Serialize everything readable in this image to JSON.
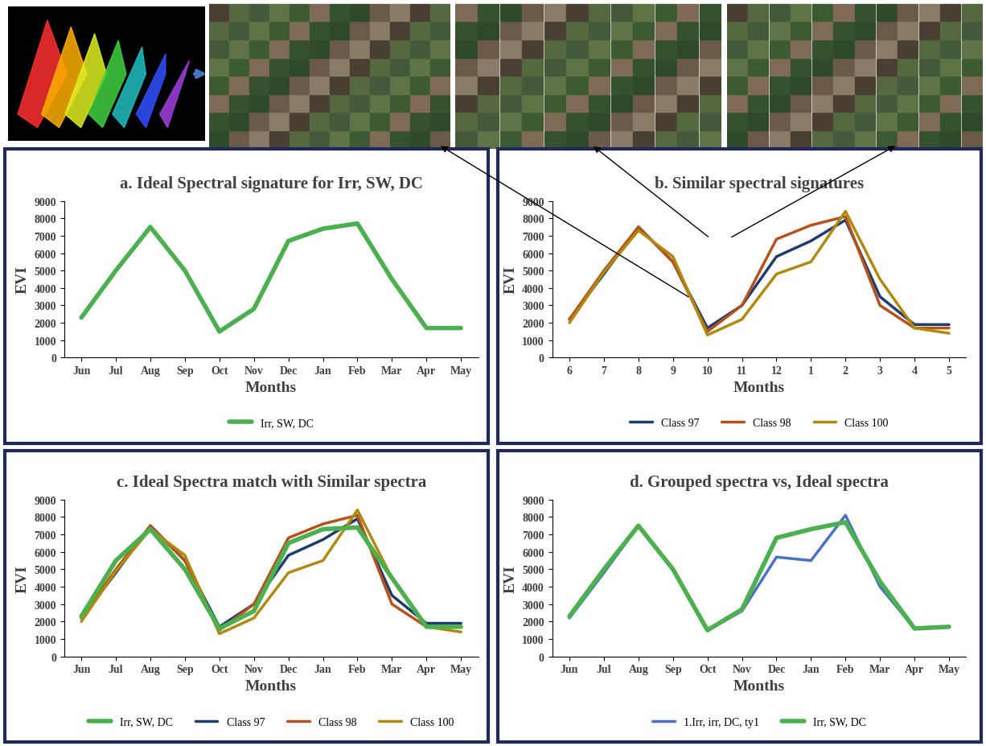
{
  "chart_data": [
    {
      "type": "line",
      "title": "a. Ideal Spectral signature for Irr, SW, DC",
      "x_label": "Months",
      "y_label": "EVI",
      "categories": [
        "Jun",
        "Jul",
        "Aug",
        "Sep",
        "Oct",
        "Nov",
        "Dec",
        "Jan",
        "Feb",
        "Mar",
        "Apr",
        "May"
      ],
      "series": [
        {
          "name": "Irr, SW, DC",
          "color": "#4cb050",
          "values": [
            2300,
            5000,
            7500,
            5000,
            1500,
            2800,
            6700,
            7400,
            7700,
            4500,
            1700,
            1700
          ]
        }
      ],
      "ylim": [
        0,
        9000
      ],
      "yticks": [
        0,
        1000,
        2000,
        3000,
        4000,
        5000,
        6000,
        7000,
        8000,
        9000
      ],
      "grid": false,
      "legend": "bottom"
    },
    {
      "type": "line",
      "title": "b. Similar spectral signatures",
      "x_label": "Months",
      "y_label": "EVI",
      "categories": [
        "6",
        "7",
        "8",
        "9",
        "10",
        "11",
        "12",
        "1",
        "2",
        "3",
        "4",
        "5"
      ],
      "series": [
        {
          "name": "Class 97",
          "color": "#1f3c6e",
          "values": [
            2200,
            4800,
            7500,
            5500,
            1700,
            3000,
            5800,
            6700,
            7900,
            3500,
            1900,
            1900
          ]
        },
        {
          "name": "Class 98",
          "color": "#b5521b",
          "values": [
            2200,
            5000,
            7500,
            5500,
            1500,
            3000,
            6800,
            7600,
            8100,
            3000,
            1700,
            1700
          ]
        },
        {
          "name": "Class 100",
          "color": "#b08a10",
          "values": [
            2000,
            4900,
            7300,
            5800,
            1300,
            2200,
            4800,
            5500,
            8400,
            4500,
            1700,
            1400
          ]
        }
      ],
      "ylim": [
        0,
        9000
      ],
      "yticks": [
        0,
        1000,
        2000,
        3000,
        4000,
        5000,
        6000,
        7000,
        8000,
        9000
      ],
      "grid": false,
      "legend": "bottom"
    },
    {
      "type": "line",
      "title": "c. Ideal Spectra match with Similar spectra",
      "x_label": "Months",
      "y_label": "EVI",
      "categories": [
        "Jun",
        "Jul",
        "Aug",
        "Sep",
        "Oct",
        "Nov",
        "Dec",
        "Jan",
        "Feb",
        "Mar",
        "Apr",
        "May"
      ],
      "series": [
        {
          "name": "Irr, SW, DC",
          "color": "#4cb050",
          "values": [
            2300,
            5500,
            7300,
            5000,
            1600,
            2600,
            6500,
            7300,
            7400,
            4500,
            1700,
            1700
          ]
        },
        {
          "name": "Class 97",
          "color": "#1f3c6e",
          "values": [
            2200,
            4800,
            7500,
            5500,
            1700,
            3000,
            5800,
            6700,
            7900,
            3500,
            1900,
            1900
          ]
        },
        {
          "name": "Class 98",
          "color": "#b5521b",
          "values": [
            2200,
            5000,
            7500,
            5500,
            1500,
            3000,
            6800,
            7600,
            8100,
            3000,
            1700,
            1700
          ]
        },
        {
          "name": "Class 100",
          "color": "#b08a10",
          "values": [
            2000,
            4900,
            7300,
            5800,
            1300,
            2200,
            4800,
            5500,
            8400,
            4500,
            1700,
            1400
          ]
        }
      ],
      "ylim": [
        0,
        9000
      ],
      "yticks": [
        0,
        1000,
        2000,
        3000,
        4000,
        5000,
        6000,
        7000,
        8000,
        9000
      ],
      "grid": false,
      "legend": "bottom"
    },
    {
      "type": "line",
      "title": "d. Grouped spectra vs, Ideal spectra",
      "x_label": "Months",
      "y_label": "EVI",
      "categories": [
        "Jun",
        "Jul",
        "Aug",
        "Sep",
        "Oct",
        "Nov",
        "Dec",
        "Jan",
        "Feb",
        "Mar",
        "Apr",
        "May"
      ],
      "series": [
        {
          "name": "1.Irr, irr, DC, ty1",
          "color": "#4a72c4",
          "values": [
            2200,
            4800,
            7500,
            5000,
            1500,
            2600,
            5700,
            5500,
            8100,
            4000,
            1600,
            1700
          ]
        },
        {
          "name": "Irr, SW, DC",
          "color": "#4cb050",
          "values": [
            2300,
            5000,
            7500,
            5000,
            1500,
            2700,
            6800,
            7300,
            7700,
            4300,
            1600,
            1700
          ]
        }
      ],
      "ylim": [
        0,
        9000
      ],
      "yticks": [
        0,
        1000,
        2000,
        3000,
        4000,
        5000,
        6000,
        7000,
        8000,
        9000
      ],
      "grid": false,
      "legend": "bottom"
    }
  ]
}
